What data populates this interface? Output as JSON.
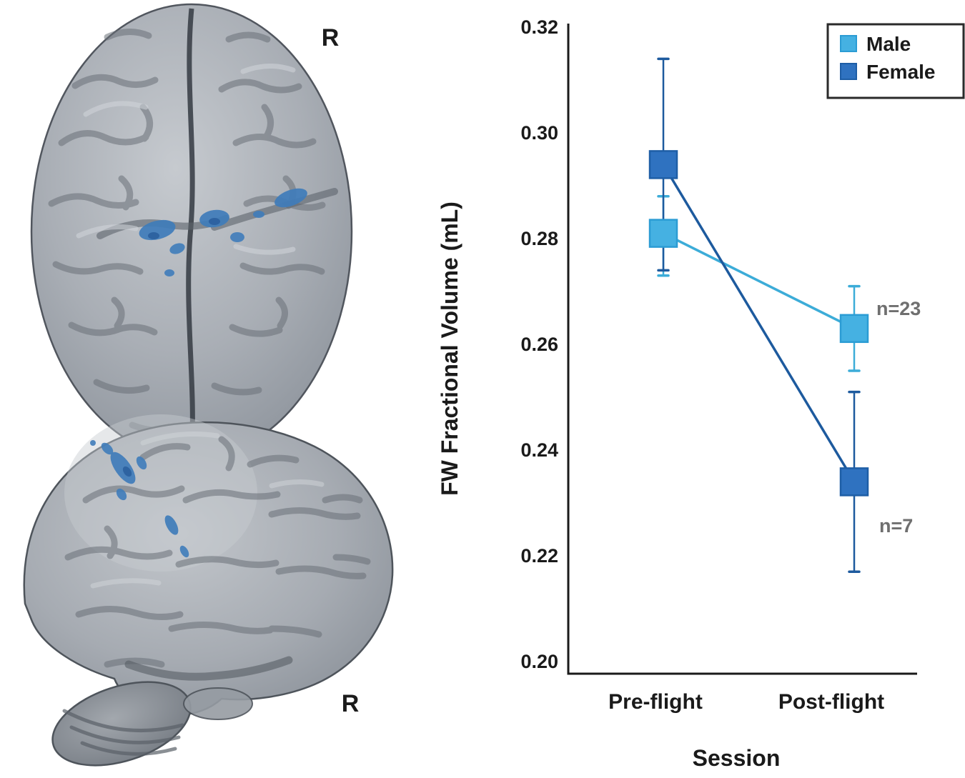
{
  "figure": {
    "brains": {
      "top_view_r_label": "R",
      "side_view_r_label": "R",
      "cluster_color": "#3f7cba",
      "cluster_accent_color": "#2b5f9e"
    }
  },
  "chart_data": {
    "type": "line",
    "title": "",
    "xlabel": "Session",
    "ylabel": "FW Fractional Volume (mL)",
    "categories": [
      "Pre-flight",
      "Post-flight"
    ],
    "ylim": [
      0.2,
      0.32
    ],
    "yticks": [
      0.2,
      0.22,
      0.24,
      0.26,
      0.28,
      0.3,
      0.32
    ],
    "grid": false,
    "axis_color": "#1a1a1a",
    "annotation_color": "#6f6f6f",
    "legend_position": "top-right",
    "series": [
      {
        "name": "Male",
        "color": "#45b1e2",
        "edge": "#2b9cd4",
        "line_color": "#3cacd8",
        "values": [
          0.281,
          0.263
        ],
        "err_high": [
          0.288,
          0.271
        ],
        "err_low": [
          0.273,
          0.255
        ],
        "n_label": "n=23"
      },
      {
        "name": "Female",
        "color": "#2f72c0",
        "edge": "#1e5ea6",
        "line_color": "#1d5a9e",
        "values": [
          0.294,
          0.234
        ],
        "err_high": [
          0.314,
          0.251
        ],
        "err_low": [
          0.274,
          0.217
        ],
        "n_label": "n=7"
      }
    ]
  }
}
